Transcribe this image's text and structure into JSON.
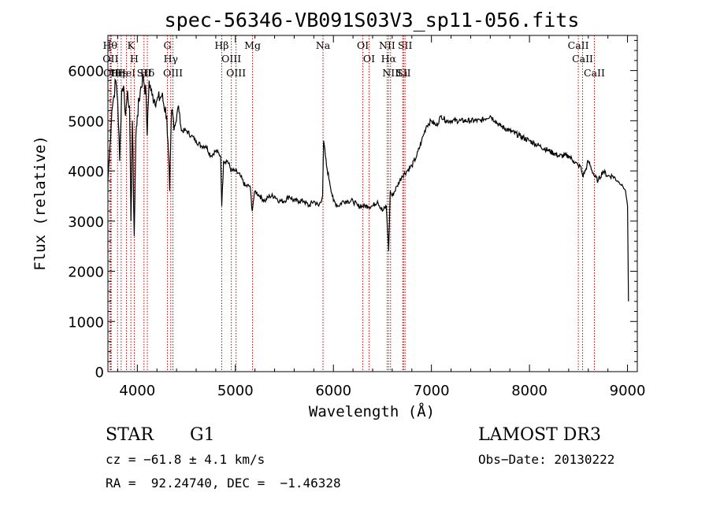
{
  "chart_data": {
    "type": "line",
    "title": "spec-56346-VB091S03V3_sp11-056.fits",
    "xlabel": "Wavelength (Å)",
    "ylabel": "Flux (relative)",
    "xlim": [
      3700,
      9100
    ],
    "ylim": [
      0,
      6700
    ],
    "x_ticks": [
      4000,
      5000,
      6000,
      7000,
      8000,
      9000
    ],
    "y_ticks": [
      0,
      1000,
      2000,
      3000,
      4000,
      5000,
      6000
    ],
    "x_tick_labels": [
      "4000",
      "5000",
      "6000",
      "7000",
      "8000",
      "9000"
    ],
    "y_tick_labels": [
      "0",
      "1000",
      "2000",
      "3000",
      "4000",
      "5000",
      "6000"
    ],
    "grid": false,
    "series": [
      {
        "color": "#000000",
        "x": [
          3700,
          3720,
          3740,
          3760,
          3780,
          3800,
          3820,
          3840,
          3860,
          3880,
          3900,
          3920,
          3935,
          3950,
          3968,
          3985,
          4000,
          4030,
          4060,
          4090,
          4101,
          4120,
          4150,
          4200,
          4250,
          4300,
          4330,
          4340,
          4350,
          4380,
          4420,
          4450,
          4500,
          4550,
          4600,
          4650,
          4700,
          4750,
          4800,
          4850,
          4861,
          4880,
          4920,
          4960,
          5000,
          5050,
          5100,
          5150,
          5172,
          5183,
          5200,
          5250,
          5300,
          5350,
          5400,
          5450,
          5500,
          5550,
          5600,
          5650,
          5700,
          5750,
          5800,
          5850,
          5890,
          5900,
          5930,
          5960,
          6000,
          6050,
          6100,
          6150,
          6200,
          6250,
          6300,
          6350,
          6400,
          6450,
          6500,
          6540,
          6563,
          6580,
          6600,
          6650,
          6700,
          6750,
          6800,
          6850,
          6900,
          6950,
          7000,
          7050,
          7100,
          7150,
          7200,
          7300,
          7400,
          7500,
          7600,
          7650,
          7700,
          7800,
          7900,
          8000,
          8100,
          8200,
          8300,
          8400,
          8450,
          8498,
          8520,
          8542,
          8570,
          8600,
          8662,
          8700,
          8750,
          8800,
          8850,
          8900,
          8950,
          8980,
          9000,
          9010
        ],
        "y": [
          3800,
          4500,
          5200,
          5500,
          5800,
          5400,
          4200,
          5600,
          5700,
          5100,
          5600,
          5300,
          3000,
          5000,
          2700,
          4700,
          5100,
          5600,
          5900,
          5500,
          4700,
          5800,
          5500,
          5400,
          5500,
          5100,
          3600,
          4500,
          5200,
          4900,
          5300,
          4800,
          4800,
          4700,
          4600,
          4500,
          4500,
          4300,
          4400,
          4300,
          3300,
          4200,
          4200,
          4000,
          4000,
          3900,
          3700,
          3700,
          3200,
          3400,
          3600,
          3500,
          3400,
          3500,
          3500,
          3400,
          3400,
          3500,
          3400,
          3400,
          3400,
          3300,
          3400,
          3300,
          3500,
          4600,
          4100,
          3800,
          3400,
          3300,
          3400,
          3400,
          3400,
          3300,
          3300,
          3300,
          3300,
          3400,
          3200,
          3300,
          2400,
          3600,
          3500,
          3700,
          3900,
          4000,
          4100,
          4300,
          4600,
          4900,
          5000,
          4900,
          5100,
          5000,
          5000,
          5000,
          5000,
          5000,
          5100,
          5000,
          4900,
          4800,
          4700,
          4600,
          4500,
          4400,
          4300,
          4300,
          4200,
          4100,
          4100,
          3900,
          4000,
          4200,
          3900,
          3800,
          4000,
          3900,
          3900,
          3800,
          3700,
          3600,
          3300,
          1400
        ]
      }
    ],
    "lines": [
      {
        "x": 3722,
        "labels": [
          "Hθ"
        ]
      },
      {
        "x": 3727,
        "labels": [
          "OII"
        ]
      },
      {
        "x": 3734,
        "labels": [
          "OII"
        ]
      },
      {
        "x": 3798,
        "labels": [
          "Hη"
        ]
      },
      {
        "x": 3835,
        "labels": [
          "Hε"
        ]
      },
      {
        "x": 3889,
        "labels": [
          "HeI"
        ]
      },
      {
        "x": 3934,
        "labels": [
          "K"
        ]
      },
      {
        "x": 3969,
        "labels": [
          "H"
        ]
      },
      {
        "x": 4068,
        "labels": [
          "SII"
        ]
      },
      {
        "x": 4102,
        "labels": [
          "Hδ"
        ]
      },
      {
        "x": 4307,
        "labels": [
          "G"
        ]
      },
      {
        "x": 4341,
        "labels": [
          "Hγ"
        ]
      },
      {
        "x": 4363,
        "labels": [
          "OIII"
        ]
      },
      {
        "x": 4861,
        "labels": [
          "Hβ"
        ]
      },
      {
        "x": 4959,
        "labels": [
          "OIII"
        ]
      },
      {
        "x": 5007,
        "labels": [
          "OIII"
        ]
      },
      {
        "x": 5175,
        "labels": [
          "Mg"
        ]
      },
      {
        "x": 5894,
        "labels": [
          "Na"
        ]
      },
      {
        "x": 6300,
        "labels": [
          "OI"
        ]
      },
      {
        "x": 6364,
        "labels": [
          "OI"
        ]
      },
      {
        "x": 6548,
        "labels": [
          "NII"
        ]
      },
      {
        "x": 6563,
        "labels": [
          "Hα"
        ]
      },
      {
        "x": 6583,
        "labels": [
          "NII"
        ]
      },
      {
        "x": 6707,
        "labels": [
          "Li"
        ]
      },
      {
        "x": 6716,
        "labels": [
          "SII"
        ]
      },
      {
        "x": 6731,
        "labels": [
          "SII"
        ]
      },
      {
        "x": 8498,
        "labels": [
          "CaII"
        ]
      },
      {
        "x": 8542,
        "labels": [
          "CaII"
        ]
      },
      {
        "x": 8662,
        "labels": [
          "CaII"
        ]
      }
    ],
    "line_color": "#cc0000"
  },
  "info": {
    "object_class": "STAR",
    "subclass": "G1",
    "survey": "LAMOST DR3",
    "cz": "cz = −61.8 ± 4.1 km/s",
    "obs_date": "Obs−Date: 20130222",
    "radec": "RA =  92.24740, DEC =  −1.46328"
  }
}
